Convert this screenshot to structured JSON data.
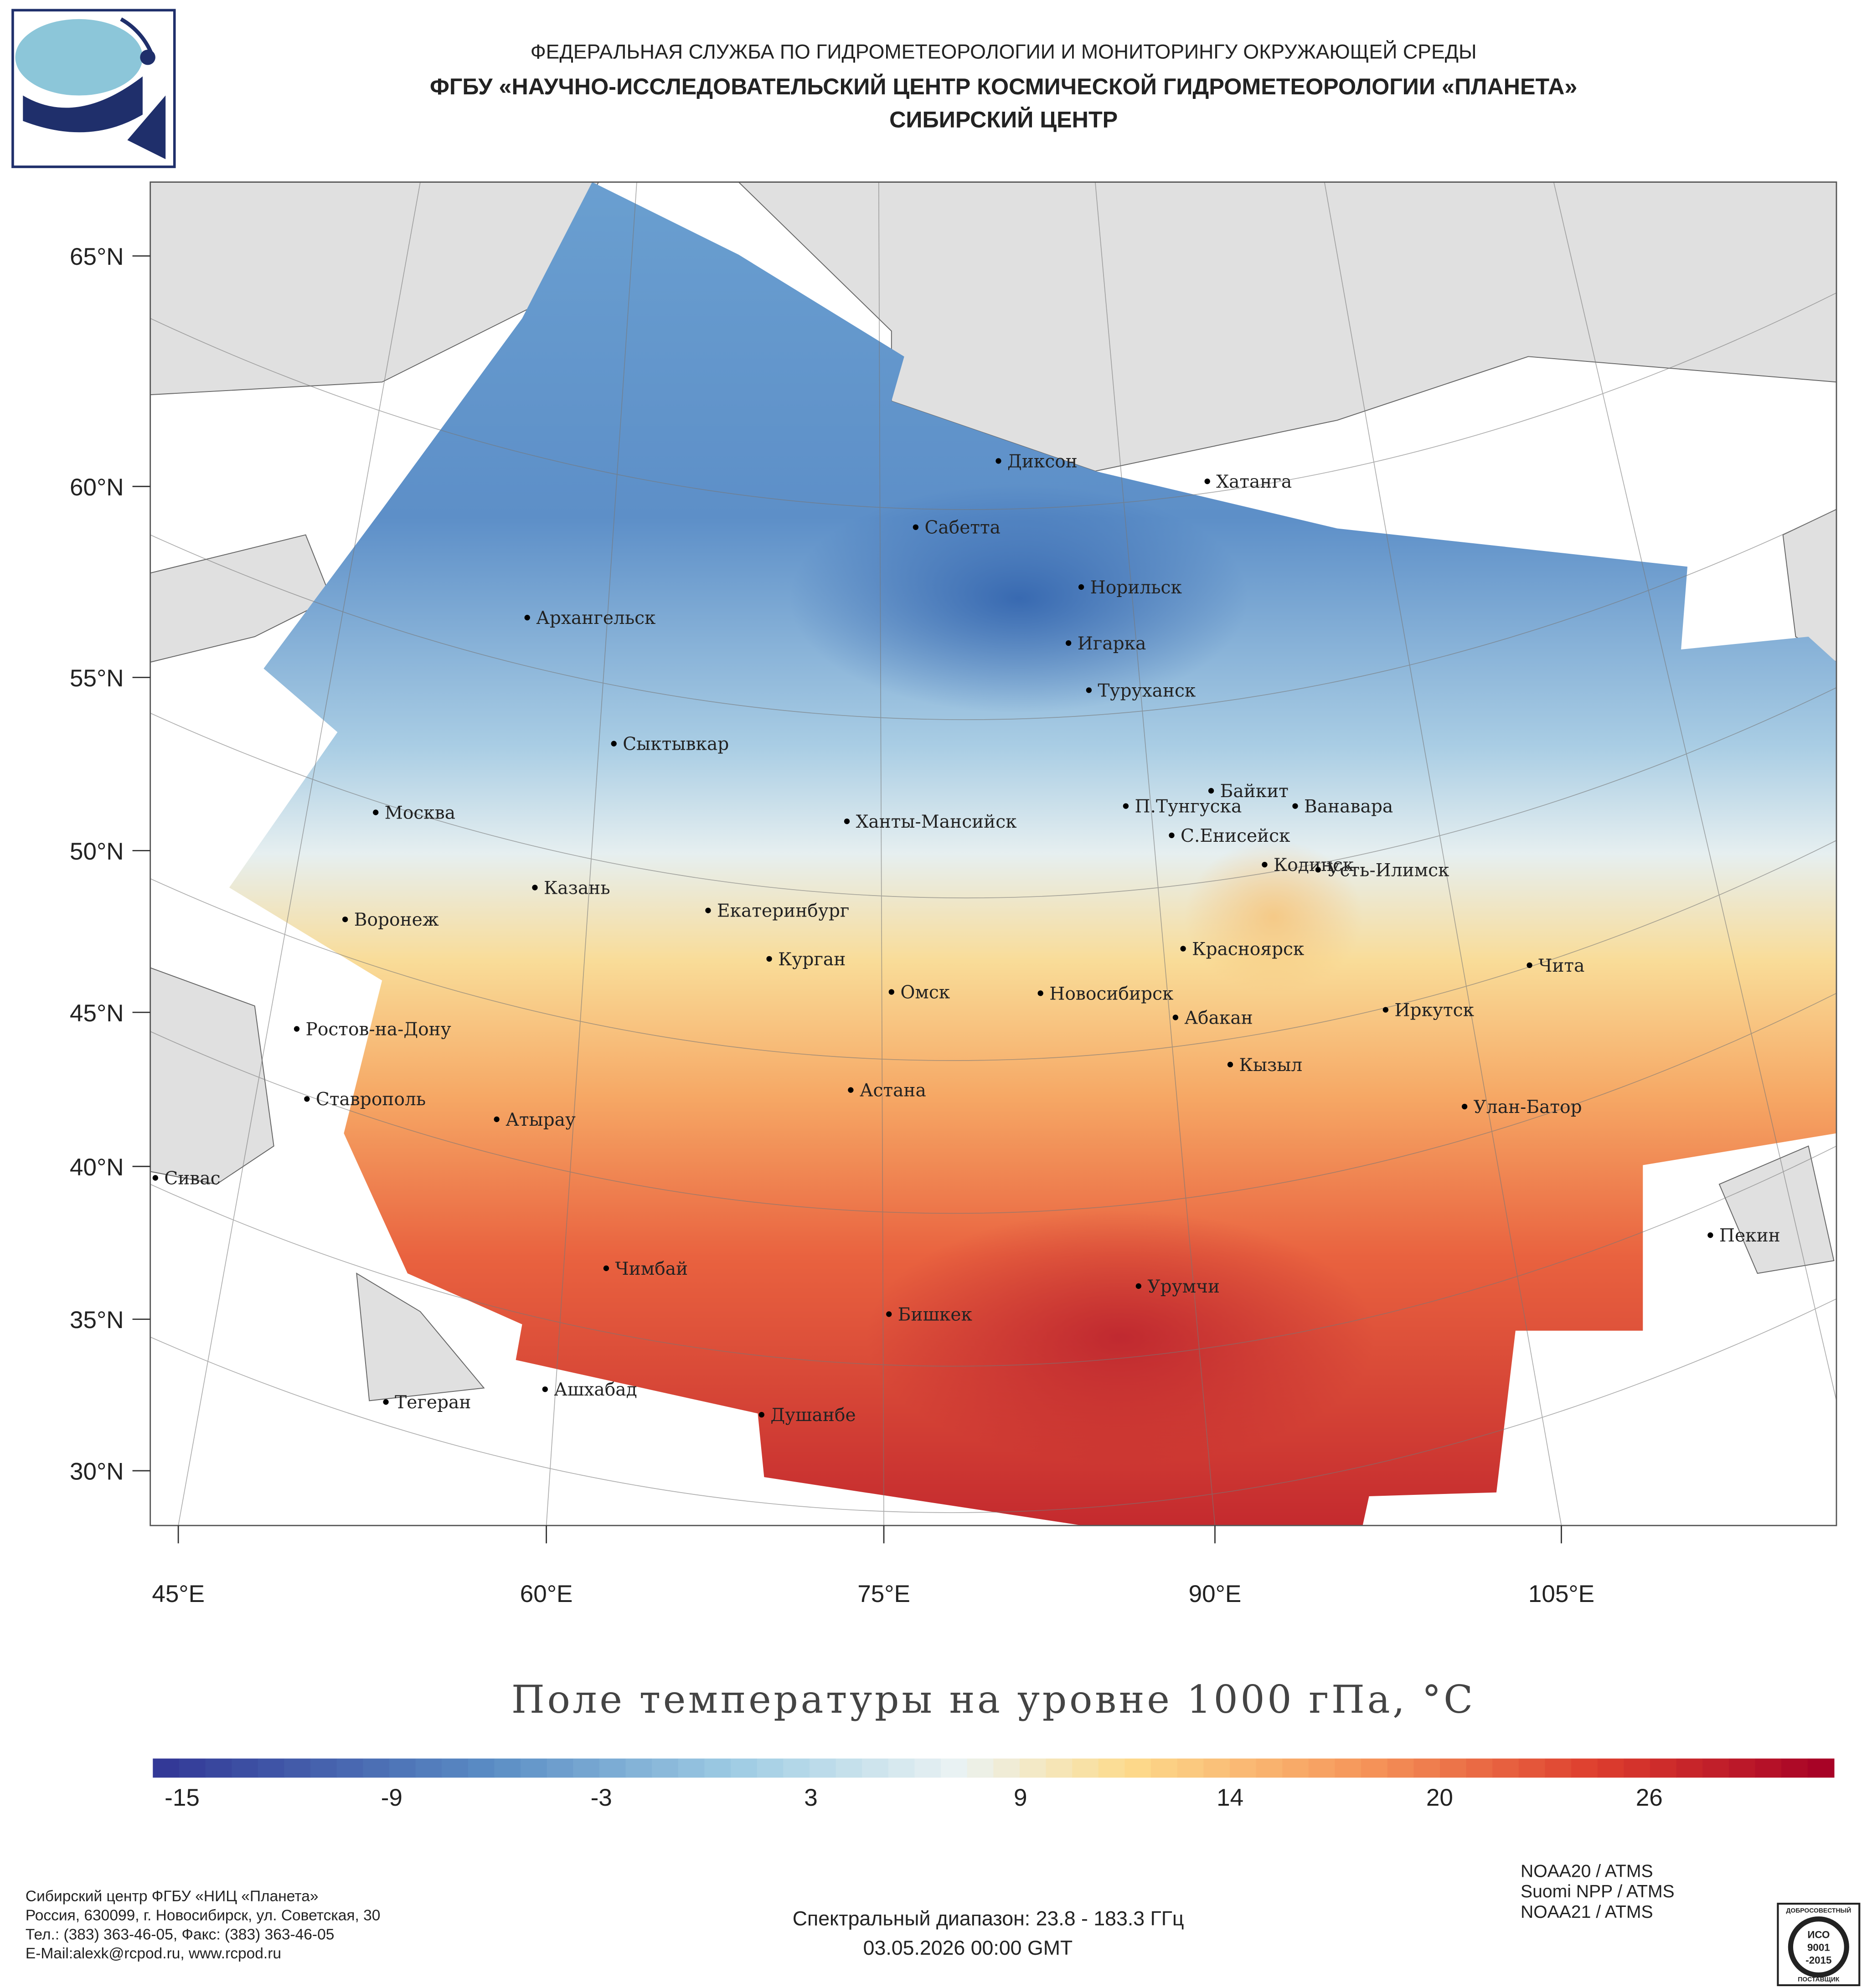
{
  "header": {
    "agency": "ФЕДЕРАЛЬНАЯ СЛУЖБА ПО ГИДРОМЕТЕОРОЛОГИИ И МОНИТОРИНГУ ОКРУЖАЮЩЕЙ СРЕДЫ",
    "center": "ФГБУ «НАУЧНО-ИССЛЕДОВАТЕЛЬСКИЙ ЦЕНТР КОСМИЧЕСКОЙ ГИДРОМЕТЕОРОЛОГИИ «ПЛАНЕТА»",
    "branch": "СИБИРСКИЙ ЦЕНТР"
  },
  "map": {
    "lat_labels": [
      "65°N",
      "60°N",
      "55°N",
      "50°N",
      "45°N",
      "40°N",
      "35°N",
      "30°N"
    ],
    "lon_labels": [
      "45°E",
      "60°E",
      "75°E",
      "90°E",
      "105°E"
    ],
    "cities": [
      "Диксон",
      "Хатанга",
      "Сабетта",
      "Норильск",
      "Архангельск",
      "Игарка",
      "Туруханск",
      "Сыктывкар",
      "Байкит",
      "П.Тунгуска",
      "Ванавара",
      "Москва",
      "Ханты-Мансийск",
      "С.Енисейск",
      "Кодинск",
      "Усть-Илимск",
      "Казань",
      "Екатеринбург",
      "Воронеж",
      "Красноярск",
      "Курган",
      "Чита",
      "Омск",
      "Новосибирск",
      "Иркутск",
      "Абакан",
      "Ростов-на-Дону",
      "Кызыл",
      "Астана",
      "Ставрополь",
      "Улан-Батор",
      "Атырау",
      "Сивас",
      "Пекин",
      "Чимбай",
      "Урумчи",
      "Бишкек",
      "Ашхабад",
      "Тегеран",
      "Душанбе"
    ],
    "title": "Поле температуры на уровне 1000 гПа, °C",
    "colorbar": {
      "ticks": [
        -15,
        -9,
        -3,
        3,
        9,
        14,
        20,
        26
      ]
    }
  },
  "footer": {
    "address": [
      "Сибирский центр ФГБУ «НИЦ «Планета»",
      "Россия, 630099, г. Новосибирск, ул. Советская, 30",
      "Тел.: (383) 363-46-05, Факс: (383) 363-46-05",
      "E-Mail:alexk@rcpod.ru, www.rcpod.ru"
    ],
    "spectral": "Спектральный диапазон: 23.8 - 183.3 ГГц",
    "date": "03.05.2026 00:00 GMT",
    "satellites": [
      "NOAA20 / ATMS",
      "Suomi NPP / ATMS",
      "NOAA21 / ATMS"
    ]
  },
  "badge": [
    "ДОБРОСОВЕСТНЫЙ",
    "ИСО",
    "9001",
    "-2015",
    "ПОСТАВЩИК"
  ]
}
